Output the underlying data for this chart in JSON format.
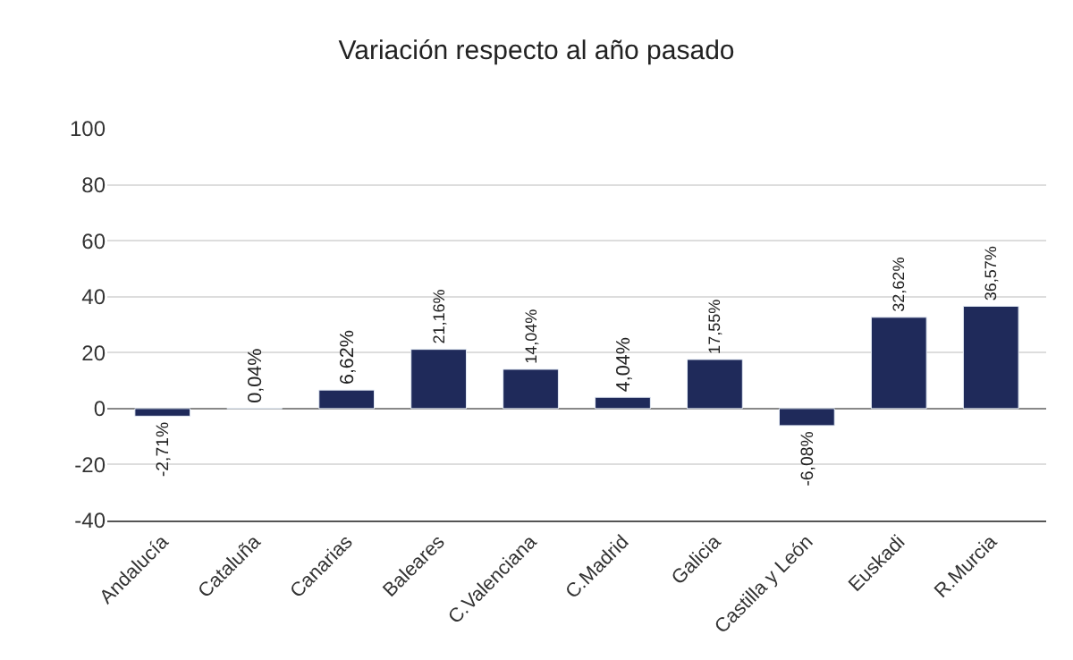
{
  "chart_data": {
    "type": "bar",
    "title": "Variación respecto al año pasado",
    "categories": [
      "Andalucía",
      "Cataluña",
      "Canarias",
      "Baleares",
      "C.Valenciana",
      "C.Madrid",
      "Galicia",
      "Castilla y León",
      "Euskadi",
      "R.Murcia"
    ],
    "values": [
      -2.71,
      0.04,
      6.62,
      21.16,
      14.04,
      4.04,
      17.55,
      -6.08,
      32.62,
      36.57
    ],
    "value_labels": [
      "-2,71%",
      "0,04%",
      "6,62%",
      "21,16%",
      "14,04%",
      "4,04%",
      "17,55%",
      "-6,08%",
      "32,62%",
      "36,57%"
    ],
    "color": "#1f2a5a",
    "ylim": [
      -40,
      100
    ],
    "yticks": [
      -40,
      -20,
      0,
      20,
      40,
      60,
      80,
      100
    ],
    "grid": "y",
    "legend": false
  }
}
